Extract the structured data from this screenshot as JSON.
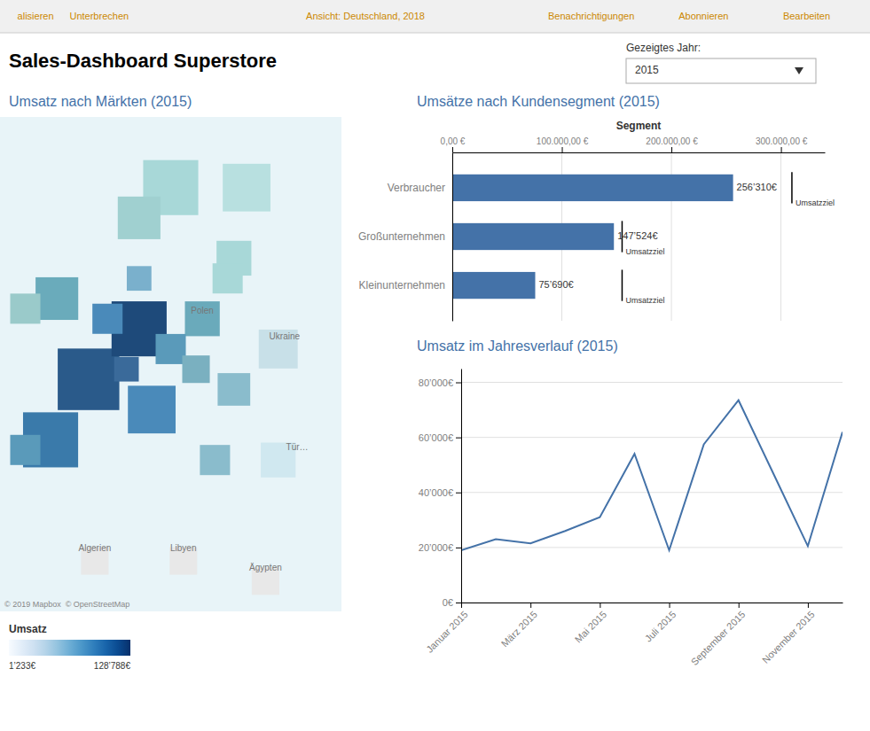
{
  "title": "Sales-Dashboard Superstore",
  "navigation": [
    "alisieren",
    "Unterbrechen",
    "Ansicht: Deutschland, 2018",
    "Benachrichtigungen",
    "Abonnieren",
    "Bearbeiten"
  ],
  "year_selector": {
    "label": "Gezeigtes Jahr:",
    "value": "2015"
  },
  "chart_data": [
    {
      "type": "scatter",
      "title": "Umsatz nach Märkten (2015)",
      "marker": "square",
      "tick_labels": false,
      "x": [
        15,
        27,
        10,
        25,
        24,
        -3,
        -8,
        2,
        10,
        -4,
        12,
        5,
        20,
        15,
        8,
        -8,
        10,
        22,
        25,
        19,
        32,
        32,
        3,
        17,
        30
      ],
      "values": [
        65,
        65,
        62,
        58,
        56,
        54,
        53,
        46,
        51,
        40,
        43,
        52,
        52,
        49,
        47,
        39,
        56,
        38,
        45,
        47,
        49,
        38,
        28,
        28,
        26
      ],
      "sizes": [
        2000,
        1500,
        1200,
        800,
        600,
        1200,
        600,
        2500,
        2000,
        2000,
        1500,
        600,
        800,
        600,
        400,
        600,
        400,
        600,
        700,
        500,
        1000,
        800,
        500,
        500,
        500
      ],
      "colors": [
        "#a8d8d8",
        "#b8e0e0",
        "#a0d0d0",
        "#a8d8d8",
        "#a8d8d8",
        "#6aabbb",
        "#9acaca",
        "#2a5a8a",
        "#1e4a7a",
        "#3a7aaa",
        "#4a8aba",
        "#4a8aba",
        "#6aaabb",
        "#5a9aba",
        "#3a6a9a",
        "#5a9aba",
        "#7ab0cc",
        "#8abccc",
        "#8abccc",
        "#7ab0c0",
        "#c8e0e8",
        "#d0e8f0",
        "#e8e8e8",
        "#e8e8e8",
        "#e8e8e8"
      ],
      "xlim": [
        -12,
        42
      ],
      "ylim": [
        23,
        72
      ],
      "annotations": [
        {
          "text": "Polen",
          "x": 20,
          "y": 52.5
        },
        {
          "text": "Ukraine",
          "x": 33,
          "y": 50
        },
        {
          "text": "Algerien",
          "x": 3,
          "y": 29
        },
        {
          "text": "Libyen",
          "x": 17,
          "y": 29
        },
        {
          "text": "Ägypten",
          "x": 30,
          "y": 27
        },
        {
          "text": "Tür…",
          "x": 35,
          "y": 39
        }
      ],
      "source": "© 2019 Mapbox  © OpenStreetMap",
      "colorbar": {
        "title": "Umsatz",
        "range": [
          1233,
          128788
        ],
        "ticks": [
          {
            "value": 1233,
            "label": "1’233€"
          },
          {
            "value": 128788,
            "label": "128’788€"
          }
        ]
      }
    },
    {
      "type": "bar",
      "orientation": "horizontal",
      "title": "Umsätze nach Kundensegment (2015)",
      "x_label": "Segment",
      "categories": [
        "Verbraucher",
        "Großunternehmen",
        "Kleinunternehmen"
      ],
      "values": [
        256310,
        147524,
        75690
      ],
      "value_labels": [
        "256’310€",
        "147’524€",
        "75’690€"
      ],
      "data_labels": true,
      "color": "#4472a8",
      "xlim": [
        0,
        340000
      ],
      "xticks": [
        {
          "value": 0,
          "label": "0,00 €"
        },
        {
          "value": 100000,
          "label": "100.000,00 €"
        },
        {
          "value": 200000,
          "label": "200.000,00 €"
        },
        {
          "value": 300000,
          "label": "300.000,00 €"
        }
      ],
      "grid": true,
      "targets": [
        310000,
        155000,
        155000
      ],
      "target_label": "Umsatzziel",
      "target_color": "#000000"
    },
    {
      "type": "line",
      "title": "Umsatz im Jahresverlauf (2015)",
      "x": [
        1,
        2,
        3,
        4,
        5,
        6,
        7,
        8,
        9,
        10,
        11,
        12
      ],
      "values": [
        19000,
        23000,
        21500,
        26000,
        31000,
        54000,
        19000,
        57500,
        73500,
        47000,
        20500,
        62000
      ],
      "color": "#4472a8",
      "xlim": [
        1,
        12
      ],
      "ylim": [
        0,
        85000
      ],
      "xticks": [
        {
          "value": 1,
          "label": "Januar 2015"
        },
        {
          "value": 3,
          "label": "März 2015"
        },
        {
          "value": 5,
          "label": "Mai 2015"
        },
        {
          "value": 7,
          "label": "Juli 2015"
        },
        {
          "value": 9,
          "label": "September 2015"
        },
        {
          "value": 11,
          "label": "November 2015"
        }
      ],
      "yticks": [
        {
          "value": 0,
          "label": "0€"
        },
        {
          "value": 20000,
          "label": "20’000€"
        },
        {
          "value": 40000,
          "label": "40’000€"
        },
        {
          "value": 60000,
          "label": "60’000€"
        },
        {
          "value": 80000,
          "label": "80’000€"
        }
      ],
      "grid": true
    }
  ]
}
